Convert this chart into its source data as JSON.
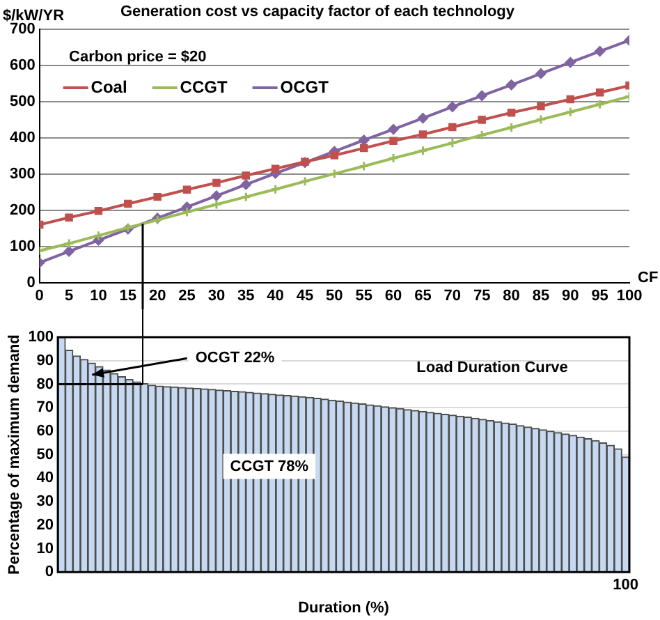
{
  "chart_data": [
    {
      "type": "line",
      "title": "Generation cost vs capacity factor of each technology",
      "ylabel": "$/kW/YR",
      "xlabel": "CF",
      "x": [
        0,
        5,
        10,
        15,
        20,
        25,
        30,
        35,
        40,
        45,
        50,
        55,
        60,
        65,
        70,
        75,
        80,
        85,
        90,
        95,
        100
      ],
      "xlim": [
        0,
        100
      ],
      "xticks": [
        0,
        5,
        10,
        15,
        20,
        25,
        30,
        35,
        40,
        45,
        50,
        55,
        60,
        65,
        70,
        75,
        80,
        85,
        90,
        95,
        100
      ],
      "ylim": [
        0,
        700
      ],
      "yticks": [
        0,
        100,
        200,
        300,
        400,
        500,
        600,
        700
      ],
      "grid": "y",
      "legend": "top left",
      "annotations": [
        "Carbon price = $20"
      ],
      "ref_lines": [
        {
          "axis": "x",
          "value": 17.5,
          "color": "#000000"
        }
      ],
      "series": [
        {
          "name": "Coal",
          "color": "#c0504d",
          "marker": "square",
          "values": [
            160,
            180,
            198,
            218,
            237,
            257,
            276,
            296,
            315,
            334,
            352,
            372,
            392,
            410,
            430,
            450,
            470,
            488,
            507,
            526,
            545
          ]
        },
        {
          "name": "CCGT",
          "color": "#9bbb59",
          "marker": "cross",
          "values": [
            88,
            108,
            130,
            152,
            173,
            195,
            216,
            237,
            258,
            280,
            301,
            322,
            344,
            365,
            386,
            408,
            429,
            451,
            472,
            493,
            515
          ]
        },
        {
          "name": "OCGT",
          "color": "#8064a2",
          "marker": "diamond",
          "values": [
            55,
            86,
            117,
            148,
            178,
            209,
            240,
            271,
            302,
            332,
            363,
            394,
            424,
            455,
            486,
            517,
            547,
            578,
            609,
            640,
            670
          ]
        }
      ]
    },
    {
      "type": "bar",
      "xlabel": "Duration (%)",
      "ylabel": "Percentage of maximum demand",
      "color": "#c6d9f1",
      "ylim": [
        0,
        100
      ],
      "yticks": [
        0,
        10,
        20,
        30,
        40,
        50,
        60,
        70,
        80,
        90,
        100
      ],
      "grid": "y",
      "annotations": [
        "OCGT 22%",
        "Load Duration Curve",
        "CCGT 78%"
      ],
      "ref_lines": [
        {
          "axis": "y",
          "value": 80,
          "color": "#000000"
        }
      ],
      "categories": [
        null,
        null,
        null,
        null,
        null,
        null,
        null,
        null,
        null,
        null,
        null,
        null,
        null,
        null,
        null,
        null,
        null,
        null,
        null,
        null,
        null,
        null,
        null,
        null,
        null,
        null,
        null,
        null,
        null,
        null,
        null,
        null,
        null,
        null,
        null,
        null,
        null,
        null,
        null,
        null,
        null,
        null,
        null,
        null,
        null,
        null,
        null,
        null,
        null,
        null,
        null,
        null,
        null,
        null,
        null,
        null,
        null,
        null,
        null,
        null,
        null,
        null,
        null,
        null,
        null,
        null,
        null,
        null,
        null,
        null,
        null,
        null,
        null,
        null,
        null,
        "100"
      ],
      "values": [
        100,
        94.5,
        92,
        90.5,
        89,
        87.5,
        86,
        84.5,
        83.2,
        82,
        81,
        80.2,
        79.6,
        79.2,
        79,
        78.8,
        78.6,
        78.4,
        78.2,
        78,
        77.8,
        77.5,
        77.3,
        77,
        76.8,
        76.5,
        76.2,
        76,
        75.7,
        75.4,
        75.2,
        75,
        74.7,
        74.4,
        74,
        73.6,
        73.2,
        72.8,
        72.4,
        72,
        71.6,
        71.2,
        70.8,
        70.4,
        70,
        69.6,
        69.2,
        68.8,
        68.4,
        68,
        67.6,
        67.2,
        66.8,
        66.4,
        66,
        65.5,
        65,
        64.5,
        64,
        63.5,
        63,
        62.4,
        61.8,
        61.2,
        60.6,
        60,
        59.4,
        58.8,
        58.2,
        57.5,
        56.8,
        56,
        55,
        54,
        52.5,
        49
      ]
    }
  ]
}
